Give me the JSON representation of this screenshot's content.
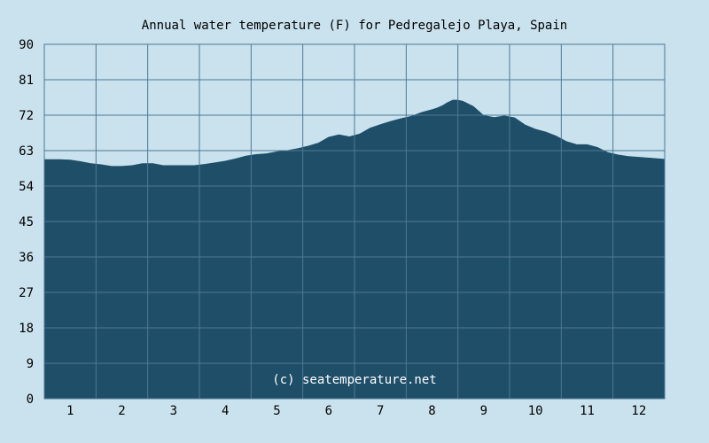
{
  "chart_data": {
    "type": "area",
    "title": "Annual water temperature (F) for Pedregalejo Playa, Spain",
    "watermark": "(c) seatemperature.net",
    "xlabel": "",
    "ylabel": "",
    "x_ticks": [
      "1",
      "2",
      "3",
      "4",
      "5",
      "6",
      "7",
      "8",
      "9",
      "10",
      "11",
      "12"
    ],
    "y_ticks": [
      "0",
      "9",
      "18",
      "27",
      "36",
      "45",
      "54",
      "63",
      "72",
      "81",
      "90"
    ],
    "xlim": [
      0.5,
      12.5
    ],
    "ylim": [
      0,
      90
    ],
    "grid": true,
    "colors": {
      "background": "#c9e2ee",
      "area": "#1e4e68",
      "grid": "#4f7894"
    },
    "series": [
      {
        "x": [
          0.5,
          0.8,
          1.0,
          1.2,
          1.4,
          1.6,
          1.8,
          2.0,
          2.2,
          2.4,
          2.6,
          2.8,
          3.0,
          3.2,
          3.4,
          3.6,
          3.8,
          4.0,
          4.2,
          4.4,
          4.6,
          4.8,
          5.0,
          5.2,
          5.4,
          5.6,
          5.8,
          6.0,
          6.2,
          6.4,
          6.6,
          6.8,
          7.0,
          7.2,
          7.4,
          7.6,
          7.8,
          8.0,
          8.1,
          8.2,
          8.3,
          8.4,
          8.5,
          8.6,
          8.8,
          9.0,
          9.2,
          9.4,
          9.6,
          9.8,
          10.0,
          10.2,
          10.4,
          10.6,
          10.8,
          11.0,
          11.2,
          11.4,
          11.6,
          11.8,
          12.0,
          12.2,
          12.5
        ],
        "values": [
          60.8,
          60.8,
          60.7,
          60.3,
          59.8,
          59.5,
          59.1,
          59.1,
          59.3,
          59.8,
          59.8,
          59.3,
          59.3,
          59.3,
          59.3,
          59.6,
          60.0,
          60.4,
          61.0,
          61.7,
          62.1,
          62.3,
          62.8,
          63.1,
          63.6,
          64.2,
          65.0,
          66.5,
          67.1,
          66.6,
          67.3,
          68.8,
          69.7,
          70.5,
          71.2,
          71.8,
          72.8,
          73.5,
          73.9,
          74.5,
          75.3,
          75.9,
          75.9,
          75.6,
          74.3,
          72.0,
          71.5,
          71.9,
          71.4,
          69.6,
          68.5,
          67.8,
          66.8,
          65.4,
          64.6,
          64.6,
          63.9,
          62.6,
          62.0,
          61.6,
          61.4,
          61.2,
          60.9
        ]
      }
    ]
  }
}
